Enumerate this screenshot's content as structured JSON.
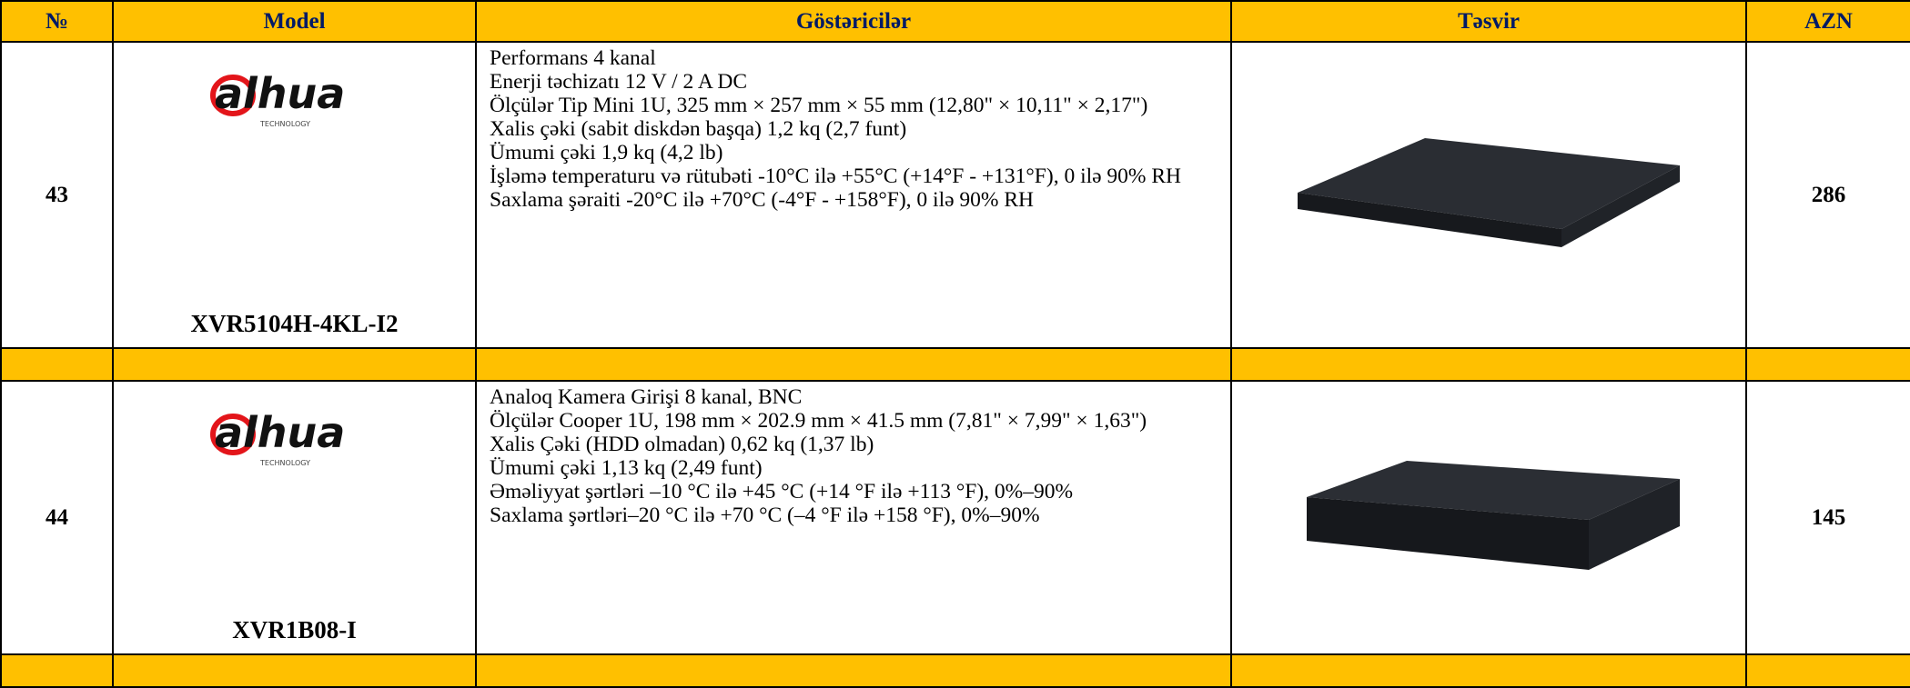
{
  "table": {
    "header": [
      "№",
      "Model",
      "Göstəricilər",
      "Təsvir",
      "AZN"
    ],
    "logo": {
      "brand": "alhua",
      "sub": "TECHNOLOGY"
    },
    "rows": [
      {
        "number": "43",
        "model": "XVR5104H-4KL-I2",
        "specs": [
          "Performans 4 kanal",
          "Enerji təchizatı 12 V / 2 A DC",
          "Ölçülər Tip Mini 1U, 325 mm × 257 mm × 55 mm (12,80\" × 10,11\" × 2,17\")",
          "Xalis çəki (sabit diskdən başqa) 1,2 kq (2,7 funt)",
          "Ümumi çəki 1,9 kq (4,2 lb)",
          "İşləmə temperaturu və rütubəti -10°C ilə +55°C (+14°F - +131°F), 0 ilə 90% RH",
          "Saxlama şəraiti -20°C ilə +70°C (-4°F - +158°F), 0 ilə 90% RH"
        ],
        "price": "286"
      },
      {
        "number": "44",
        "model": "XVR1B08-I",
        "specs": [
          "Analoq Kamera Girişi 8 kanal, BNC",
          "Ölçülər Cooper 1U, 198 mm × 202.9 mm × 41.5 mm (7,81\" × 7,99\" × 1,63\")",
          "Xalis Çəki (HDD olmadan) 0,62 kq (1,37 lb)",
          "Ümumi çəki 1,13 kq (2,49 funt)",
          "Əməliyyat şərtləri –10 °C ilə +45 °C (+14 °F ilə +113 °F), 0%–90%",
          "Saxlama şərtləri–20 °C ilə +70 °C (–4 °F ilə +158 °F), 0%–90%"
        ],
        "price": "145"
      }
    ]
  }
}
